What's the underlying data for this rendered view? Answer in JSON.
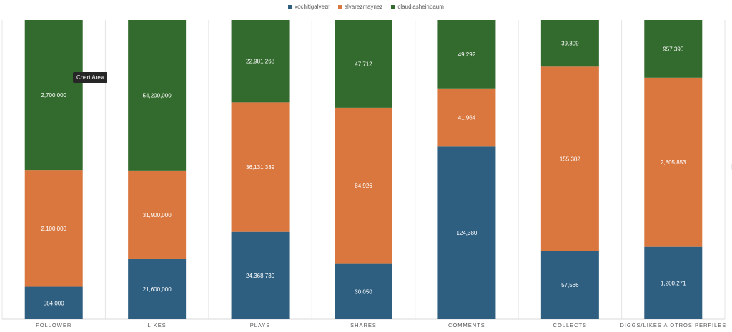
{
  "chart_data": {
    "type": "bar",
    "stacked": "percent",
    "categories": [
      "FOLLOWER",
      "LIKES",
      "PLAYS",
      "SHARES",
      "COMMENTS",
      "COLLECTS",
      "DIGGS/LIKES A OTROS PERFILES"
    ],
    "series": [
      {
        "name": "xochitlgalvezr",
        "color": "#2E5F80",
        "values": [
          584000,
          21600000,
          24368730,
          30050,
          124380,
          57566,
          1200271
        ],
        "labels": [
          "584,000",
          "21,600,000",
          "24,368,730",
          "30,050",
          "124,380",
          "57,566",
          "1,200,271"
        ]
      },
      {
        "name": "alvarezmaynez",
        "color": "#D9773F",
        "values": [
          2100000,
          31900000,
          36131339,
          84926,
          41964,
          155382,
          2805853
        ],
        "labels": [
          "2,100,000",
          "31,900,000",
          "36,131,339",
          "84,926",
          "41,964",
          "155,382",
          "2,805,853"
        ]
      },
      {
        "name": "claudiasheinbaum",
        "color": "#336B2E",
        "values": [
          2700000,
          54200000,
          22981268,
          47712,
          49292,
          39309,
          957395
        ],
        "labels": [
          "2,700,000",
          "54,200,000",
          "22,981,268",
          "47,712",
          "49,292",
          "39,309",
          "957,395"
        ]
      }
    ],
    "legend_position": "top-center",
    "grid": "vertical category separators"
  },
  "tooltip": {
    "text": "Chart Area"
  },
  "colors": {
    "background": "#FFFFFF",
    "axis_text": "#595959",
    "separator": "#E4E4E4"
  }
}
